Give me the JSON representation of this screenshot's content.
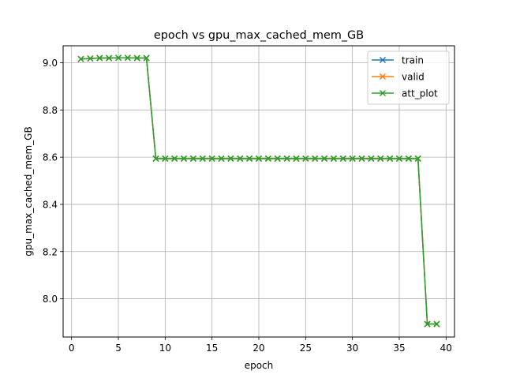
{
  "chart_data": {
    "type": "line",
    "title": "epoch vs gpu_max_cached_mem_GB",
    "xlabel": "epoch",
    "ylabel": "gpu_max_cached_mem_GB",
    "xlim": [
      -0.9,
      40.9
    ],
    "ylim": [
      7.838,
      9.072
    ],
    "xticks": [
      0,
      5,
      10,
      15,
      20,
      25,
      30,
      35,
      40
    ],
    "yticks": [
      8.0,
      8.2,
      8.4,
      8.6,
      8.8,
      9.0
    ],
    "xtick_labels": [
      "0",
      "5",
      "10",
      "15",
      "20",
      "25",
      "30",
      "35",
      "40"
    ],
    "ytick_labels": [
      "8.0",
      "8.2",
      "8.4",
      "8.6",
      "8.8",
      "9.0"
    ],
    "grid": true,
    "legend_position": "top-right",
    "marker": "x",
    "x": [
      1,
      2,
      3,
      4,
      5,
      6,
      7,
      8,
      9,
      10,
      11,
      12,
      13,
      14,
      15,
      16,
      17,
      18,
      19,
      20,
      21,
      22,
      23,
      24,
      25,
      26,
      27,
      28,
      29,
      30,
      31,
      32,
      33,
      34,
      35,
      36,
      37,
      38,
      39
    ],
    "series": [
      {
        "name": "train",
        "color": "#1f77b4",
        "values": [
          9.016,
          9.018,
          9.02,
          9.02,
          9.021,
          9.021,
          9.02,
          9.02,
          8.594,
          8.594,
          8.594,
          8.594,
          8.594,
          8.594,
          8.594,
          8.594,
          8.594,
          8.594,
          8.594,
          8.594,
          8.594,
          8.594,
          8.594,
          8.594,
          8.594,
          8.594,
          8.594,
          8.594,
          8.594,
          8.594,
          8.594,
          8.594,
          8.594,
          8.594,
          8.594,
          8.594,
          8.594,
          7.893,
          7.893
        ]
      },
      {
        "name": "valid",
        "color": "#ff7f0e",
        "values": [
          9.016,
          9.018,
          9.02,
          9.02,
          9.021,
          9.021,
          9.02,
          9.02,
          8.594,
          8.594,
          8.594,
          8.594,
          8.594,
          8.594,
          8.594,
          8.594,
          8.594,
          8.594,
          8.594,
          8.594,
          8.594,
          8.594,
          8.594,
          8.594,
          8.594,
          8.594,
          8.594,
          8.594,
          8.594,
          8.594,
          8.594,
          8.594,
          8.594,
          8.594,
          8.594,
          8.594,
          8.594,
          7.893,
          7.893
        ]
      },
      {
        "name": "att_plot",
        "color": "#2ca02c",
        "values": [
          9.016,
          9.018,
          9.02,
          9.02,
          9.021,
          9.021,
          9.02,
          9.02,
          8.594,
          8.594,
          8.594,
          8.594,
          8.594,
          8.594,
          8.594,
          8.594,
          8.594,
          8.594,
          8.594,
          8.594,
          8.594,
          8.594,
          8.594,
          8.594,
          8.594,
          8.594,
          8.594,
          8.594,
          8.594,
          8.594,
          8.594,
          8.594,
          8.594,
          8.594,
          8.594,
          8.594,
          8.594,
          7.893,
          7.893
        ]
      }
    ]
  }
}
